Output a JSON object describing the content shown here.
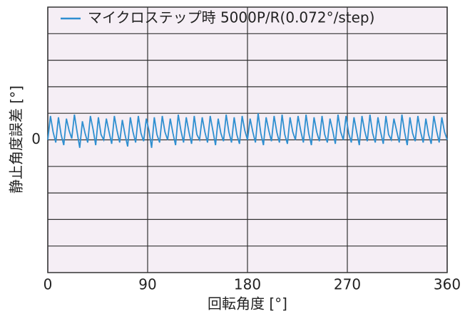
{
  "chart_data": {
    "type": "line",
    "xlabel": "回転角度 [°]",
    "ylabel": "静止角度誤差 [°]",
    "xlim": [
      0,
      360
    ],
    "xticks": [
      0,
      90,
      180,
      270,
      360
    ],
    "ylim": [
      -5,
      5
    ],
    "yticks": [
      0
    ],
    "ygrid": [
      -4,
      -3,
      -2,
      -1,
      1,
      2,
      3,
      4
    ],
    "grid": true,
    "legend": "upper left",
    "x": [
      0,
      2.4,
      4.8,
      7.2,
      9.6,
      12,
      14.4,
      16.8,
      19.2,
      21.6,
      24,
      26.4,
      28.8,
      31.2,
      33.6,
      36,
      38.4,
      40.8,
      43.2,
      45.6,
      48,
      50.4,
      52.8,
      55.2,
      57.6,
      60,
      62.4,
      64.8,
      67.2,
      69.6,
      72,
      74.4,
      76.8,
      79.2,
      81.6,
      84,
      86.4,
      88.8,
      91.2,
      93.6,
      96,
      98.4,
      100.8,
      103.2,
      105.6,
      108,
      110.4,
      112.8,
      115.2,
      117.6,
      120,
      122.4,
      124.8,
      127.2,
      129.6,
      132,
      134.4,
      136.8,
      139.2,
      141.6,
      144,
      146.4,
      148.8,
      151.2,
      153.6,
      156,
      158.4,
      160.8,
      163.2,
      165.6,
      168,
      170.4,
      172.8,
      175.2,
      177.6,
      180,
      182.4,
      184.8,
      187.2,
      189.6,
      192,
      194.4,
      196.8,
      199.2,
      201.6,
      204,
      206.4,
      208.8,
      211.2,
      213.6,
      216,
      218.4,
      220.8,
      223.2,
      225.6,
      228,
      230.4,
      232.8,
      235.2,
      237.6,
      240,
      242.4,
      244.8,
      247.2,
      249.6,
      252,
      254.4,
      256.8,
      259.2,
      261.6,
      264,
      266.4,
      268.8,
      271.2,
      273.6,
      276,
      278.4,
      280.8,
      283.2,
      285.6,
      288,
      290.4,
      292.8,
      295.2,
      297.6,
      300,
      302.4,
      304.8,
      307.2,
      309.6,
      312,
      314.4,
      316.8,
      319.2,
      321.6,
      324,
      326.4,
      328.8,
      331.2,
      333.6,
      336,
      338.4,
      340.8,
      343.2,
      345.6,
      348,
      350.4,
      352.8,
      355.2,
      357.6,
      360
    ],
    "series": [
      {
        "name": "マイクロステップ時 5000P/R(0.072°/step)",
        "color": "#2f8fd0",
        "values": [
          0.0,
          0.9,
          0.3,
          -0.1,
          0.85,
          0.2,
          -0.2,
          0.8,
          0.35,
          0.05,
          0.95,
          0.3,
          -0.3,
          0.7,
          0.25,
          -0.1,
          0.9,
          0.4,
          -0.2,
          0.85,
          0.2,
          0.0,
          0.8,
          0.3,
          -0.15,
          0.9,
          0.35,
          -0.1,
          0.75,
          0.2,
          -0.25,
          0.85,
          0.3,
          -0.1,
          0.9,
          0.25,
          -0.05,
          0.8,
          0.35,
          -0.3,
          0.85,
          0.2,
          -0.1,
          0.9,
          0.3,
          0.0,
          0.8,
          0.25,
          -0.2,
          0.95,
          0.35,
          -0.1,
          0.85,
          0.3,
          -0.15,
          0.9,
          0.2,
          0.0,
          0.85,
          0.3,
          -0.1,
          0.9,
          0.35,
          -0.2,
          0.8,
          0.25,
          -0.05,
          0.95,
          0.3,
          -0.1,
          0.85,
          0.2,
          -0.15,
          0.9,
          0.35,
          0.0,
          0.8,
          0.3,
          -0.1,
          1.0,
          0.25,
          -0.2,
          0.85,
          0.35,
          -0.05,
          0.9,
          0.3,
          -0.1,
          0.95,
          0.2,
          -0.15,
          0.85,
          0.3,
          0.0,
          0.9,
          0.35,
          -0.1,
          0.95,
          0.25,
          -0.2,
          0.85,
          0.3,
          -0.05,
          0.9,
          0.2,
          -0.1,
          0.8,
          0.35,
          -0.15,
          0.95,
          0.3,
          0.0,
          0.9,
          0.25,
          -0.1,
          0.85,
          0.3,
          -0.2,
          0.9,
          0.35,
          -0.05,
          0.95,
          0.25,
          -0.1,
          0.85,
          0.3,
          -0.15,
          0.9,
          0.2,
          0.0,
          0.8,
          0.35,
          -0.1,
          0.95,
          0.3,
          -0.2,
          0.85,
          0.25,
          -0.05,
          0.9,
          0.3,
          -0.1,
          0.8,
          0.2,
          -0.15,
          0.9,
          0.35,
          -0.1,
          0.85,
          0.3,
          0.0
        ]
      }
    ]
  }
}
